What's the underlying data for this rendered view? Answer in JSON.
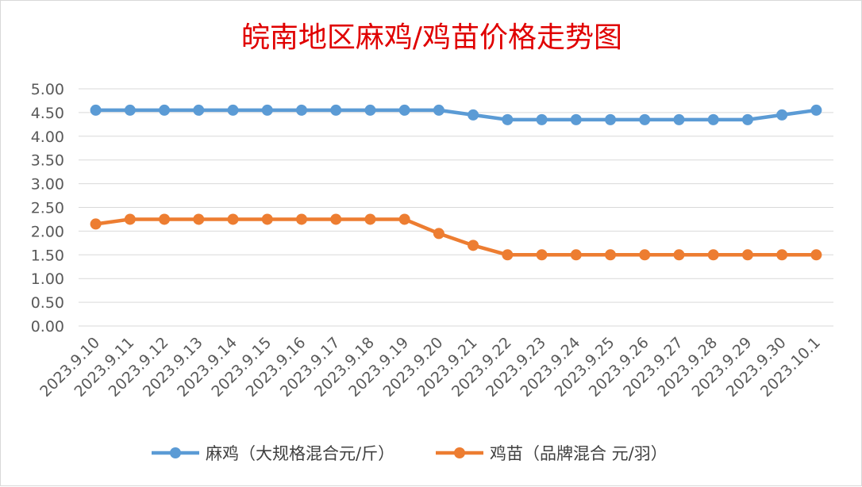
{
  "chart_data": {
    "type": "line",
    "title": "皖南地区麻鸡/鸡苗价格走势图",
    "categories": [
      "2023.9.10",
      "2023.9.11",
      "2023.9.12",
      "2023.9.13",
      "2023.9.14",
      "2023.9.15",
      "2023.9.16",
      "2023.9.17",
      "2023.9.18",
      "2023.9.19",
      "2023.9.20",
      "2023.9.21",
      "2023.9.22",
      "2023.9.23",
      "2023.9.24",
      "2023.9.25",
      "2023.9.26",
      "2023.9.27",
      "2023.9.28",
      "2023.9.29",
      "2023.9.30",
      "2023.10.1"
    ],
    "series": [
      {
        "name": "麻鸡（大规格混合元/斤）",
        "color": "#5b9bd5",
        "values": [
          4.55,
          4.55,
          4.55,
          4.55,
          4.55,
          4.55,
          4.55,
          4.55,
          4.55,
          4.55,
          4.55,
          4.45,
          4.35,
          4.35,
          4.35,
          4.35,
          4.35,
          4.35,
          4.35,
          4.35,
          4.45,
          4.55
        ]
      },
      {
        "name": "鸡苗（品牌混合 元/羽）",
        "color": "#ed7d31",
        "values": [
          2.15,
          2.25,
          2.25,
          2.25,
          2.25,
          2.25,
          2.25,
          2.25,
          2.25,
          2.25,
          1.95,
          1.7,
          1.5,
          1.5,
          1.5,
          1.5,
          1.5,
          1.5,
          1.5,
          1.5,
          1.5,
          1.5
        ]
      }
    ],
    "yticks": [
      "0.00",
      "0.50",
      "1.00",
      "1.50",
      "2.00",
      "2.50",
      "3.00",
      "3.50",
      "4.00",
      "4.50",
      "5.00"
    ],
    "ylim": [
      0,
      5
    ],
    "grid": true,
    "legend": "bottom"
  }
}
